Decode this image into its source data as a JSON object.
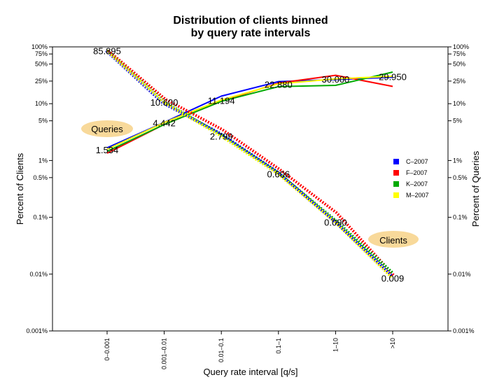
{
  "chart_data": {
    "type": "line",
    "title_line1": "Distribution of clients binned",
    "title_line2": "by query rate intervals",
    "xlabel": "Query rate interval [q/s]",
    "ylabel_left": "Percent of Clients",
    "ylabel_right": "Percent of Queries",
    "categories": [
      "0–0.001",
      "0.001–0.01",
      "0.01–0.1",
      "0.1–1",
      "1–10",
      ">10"
    ],
    "y_scale": "log",
    "ylim": [
      0.001,
      100
    ],
    "y_ticks": [
      {
        "value": 100,
        "label": "100%"
      },
      {
        "value": 75,
        "label": "75%"
      },
      {
        "value": 50,
        "label": "50%"
      },
      {
        "value": 25,
        "label": "25%"
      },
      {
        "value": 10,
        "label": "10%"
      },
      {
        "value": 5,
        "label": "5%"
      },
      {
        "value": 1,
        "label": "1%"
      },
      {
        "value": 0.5,
        "label": "0.5%"
      },
      {
        "value": 0.1,
        "label": "0.1%"
      },
      {
        "value": 0.01,
        "label": "0.01%"
      },
      {
        "value": 0.001,
        "label": "0.001%"
      }
    ],
    "legend": {
      "placement": "right",
      "entries": [
        {
          "name": "C–2007",
          "color": "#0000ff"
        },
        {
          "name": "F–2007",
          "color": "#ff0000"
        },
        {
          "name": "K–2007",
          "color": "#00aa00"
        },
        {
          "name": "M–2007",
          "color": "#ffff00"
        }
      ]
    },
    "clients_series": [
      {
        "name": "C–2007",
        "color": "#0000ff",
        "values": [
          85.895,
          10.2,
          3.0,
          0.63,
          0.085,
          0.0095
        ]
      },
      {
        "name": "F–2007",
        "color": "#ff0000",
        "values": [
          85.895,
          12.0,
          3.5,
          0.7,
          0.12,
          0.0095
        ]
      },
      {
        "name": "K–2007",
        "color": "#00aa00",
        "values": [
          85.895,
          10.8,
          2.8,
          0.6,
          0.088,
          0.0105
        ]
      },
      {
        "name": "M–2007",
        "color": "#ffff00",
        "values": [
          85.895,
          10.6,
          2.7,
          0.58,
          0.082,
          0.0085
        ]
      }
    ],
    "queries_series": [
      {
        "name": "C–2007",
        "color": "#0000ff",
        "values": [
          1.6,
          4.5,
          13.0,
          23.5,
          25.5,
          28.0
        ]
      },
      {
        "name": "F–2007",
        "color": "#ff0000",
        "values": [
          1.4,
          4.5,
          11.5,
          24.0,
          33.0,
          21.0
        ]
      },
      {
        "name": "K–2007",
        "color": "#00aa00",
        "values": [
          1.45,
          4.3,
          11.0,
          20.0,
          21.0,
          36.0
        ]
      },
      {
        "name": "M–2007",
        "color": "#ffff00",
        "values": [
          1.55,
          4.6,
          11.5,
          22.0,
          27.0,
          29.95
        ]
      }
    ],
    "clients_labels": [
      "85.895",
      "10.600",
      "2.799",
      "0.606",
      "0.090",
      "0.009"
    ],
    "queries_labels": [
      "1.534",
      "4.442",
      "11.194",
      "22.880",
      "30.000",
      "29.950"
    ],
    "callouts": {
      "queries": "Queries",
      "clients": "Clients"
    },
    "grid": false
  }
}
